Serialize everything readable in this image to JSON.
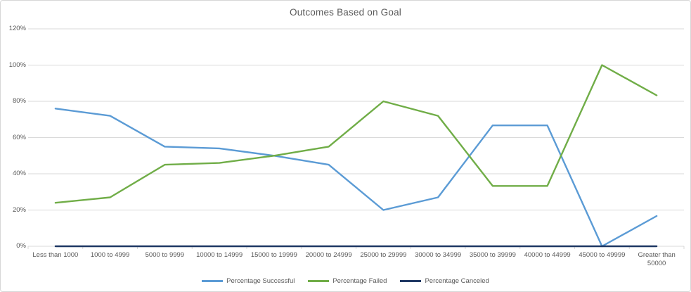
{
  "chart": {
    "title": "Outcomes Based on Goal",
    "colors": {
      "successful": "#5B9BD5",
      "failed": "#70AD47",
      "canceled": "#1F3864",
      "gridline": "#D9D9D9",
      "axis_text": "#595959",
      "border": "#D7D7D7"
    }
  },
  "chart_data": {
    "type": "line",
    "title": "Outcomes Based on Goal",
    "xlabel": "",
    "ylabel": "",
    "categories": [
      "Less than 1000",
      "1000 to 4999",
      "5000 to 9999",
      "10000 to 14999",
      "15000 to 19999",
      "20000 to 24999",
      "25000 to 29999",
      "30000 to 34999",
      "35000 to 39999",
      "40000 to 44999",
      "45000 to 49999",
      "Greater than 50000"
    ],
    "series": [
      {
        "name": "Percentage Successful",
        "color": "#5B9BD5",
        "values": [
          76,
          72,
          55,
          54,
          50,
          45,
          20,
          27,
          66.7,
          66.7,
          0,
          16.7
        ]
      },
      {
        "name": "Percentage Failed",
        "color": "#70AD47",
        "values": [
          24,
          27,
          45,
          46,
          50,
          55,
          80,
          72,
          33.3,
          33.3,
          100,
          83.3
        ]
      },
      {
        "name": "Percentage Canceled",
        "color": "#1F3864",
        "values": [
          0,
          0,
          0,
          0,
          0,
          0,
          0,
          0,
          0,
          0,
          0,
          0
        ]
      }
    ],
    "ylim": [
      0,
      120
    ],
    "yticks": [
      "0%",
      "20%",
      "40%",
      "60%",
      "80%",
      "100%",
      "120%"
    ],
    "ytick_values": [
      0,
      20,
      40,
      60,
      80,
      100,
      120
    ],
    "grid": true,
    "legend_position": "bottom"
  }
}
